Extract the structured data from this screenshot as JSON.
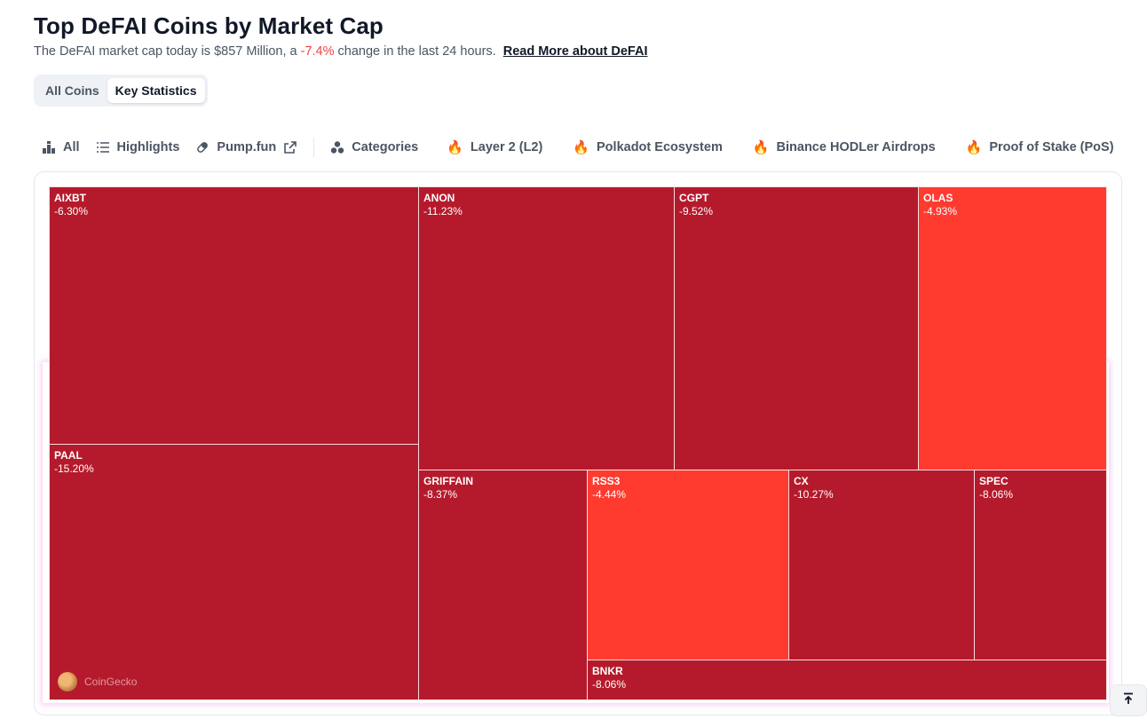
{
  "header": {
    "title": "Top DeFAI Coins by Market Cap",
    "subtitle_pre": "The DeFAI market cap today is $857 Million, a ",
    "subtitle_change": "-7.4%",
    "subtitle_post": " change in the last 24 hours.",
    "read_more_link": "Read More about DeFAI"
  },
  "view_toggle": {
    "options": [
      "All Coins",
      "Key Statistics"
    ],
    "selected": "Key Statistics"
  },
  "tabs": [
    {
      "label": "All",
      "icon": "chart-icon"
    },
    {
      "label": "Highlights",
      "icon": "list-icon"
    },
    {
      "label": "Pump.fun",
      "icon": "pill-icon",
      "external": "external-link-icon"
    },
    {
      "label": "Categories",
      "icon": "shapes-icon"
    },
    {
      "label": "Layer 2 (L2)",
      "icon": "fire-icon"
    },
    {
      "label": "Polkadot Ecosystem",
      "icon": "fire-icon"
    },
    {
      "label": "Binance HODLer Airdrops",
      "icon": "fire-icon"
    },
    {
      "label": "Proof of Stake (PoS)",
      "icon": "fire-icon"
    }
  ],
  "colors": {
    "dark_red": "#b51a2c",
    "bright_red": "#ff3b30",
    "negative_text": "#ef4444"
  },
  "treemap": {
    "tiles": [
      {
        "symbol": "AIXBT",
        "change": "-6.30%",
        "shade": "dark"
      },
      {
        "symbol": "PAAL",
        "change": "-15.20%",
        "shade": "dark"
      },
      {
        "symbol": "ANON",
        "change": "-11.23%",
        "shade": "dark"
      },
      {
        "symbol": "CGPT",
        "change": "-9.52%",
        "shade": "dark"
      },
      {
        "symbol": "OLAS",
        "change": "-4.93%",
        "shade": "bright"
      },
      {
        "symbol": "GRIFFAIN",
        "change": "-8.37%",
        "shade": "dark"
      },
      {
        "symbol": "RSS3",
        "change": "-4.44%",
        "shade": "bright"
      },
      {
        "symbol": "CX",
        "change": "-10.27%",
        "shade": "dark"
      },
      {
        "symbol": "SPEC",
        "change": "-8.06%",
        "shade": "dark"
      },
      {
        "symbol": "BNKR",
        "change": "-8.06%",
        "shade": "dark"
      }
    ],
    "watermark": "CoinGecko"
  },
  "scroll_top_icon": "arrow-up-to-top-icon"
}
